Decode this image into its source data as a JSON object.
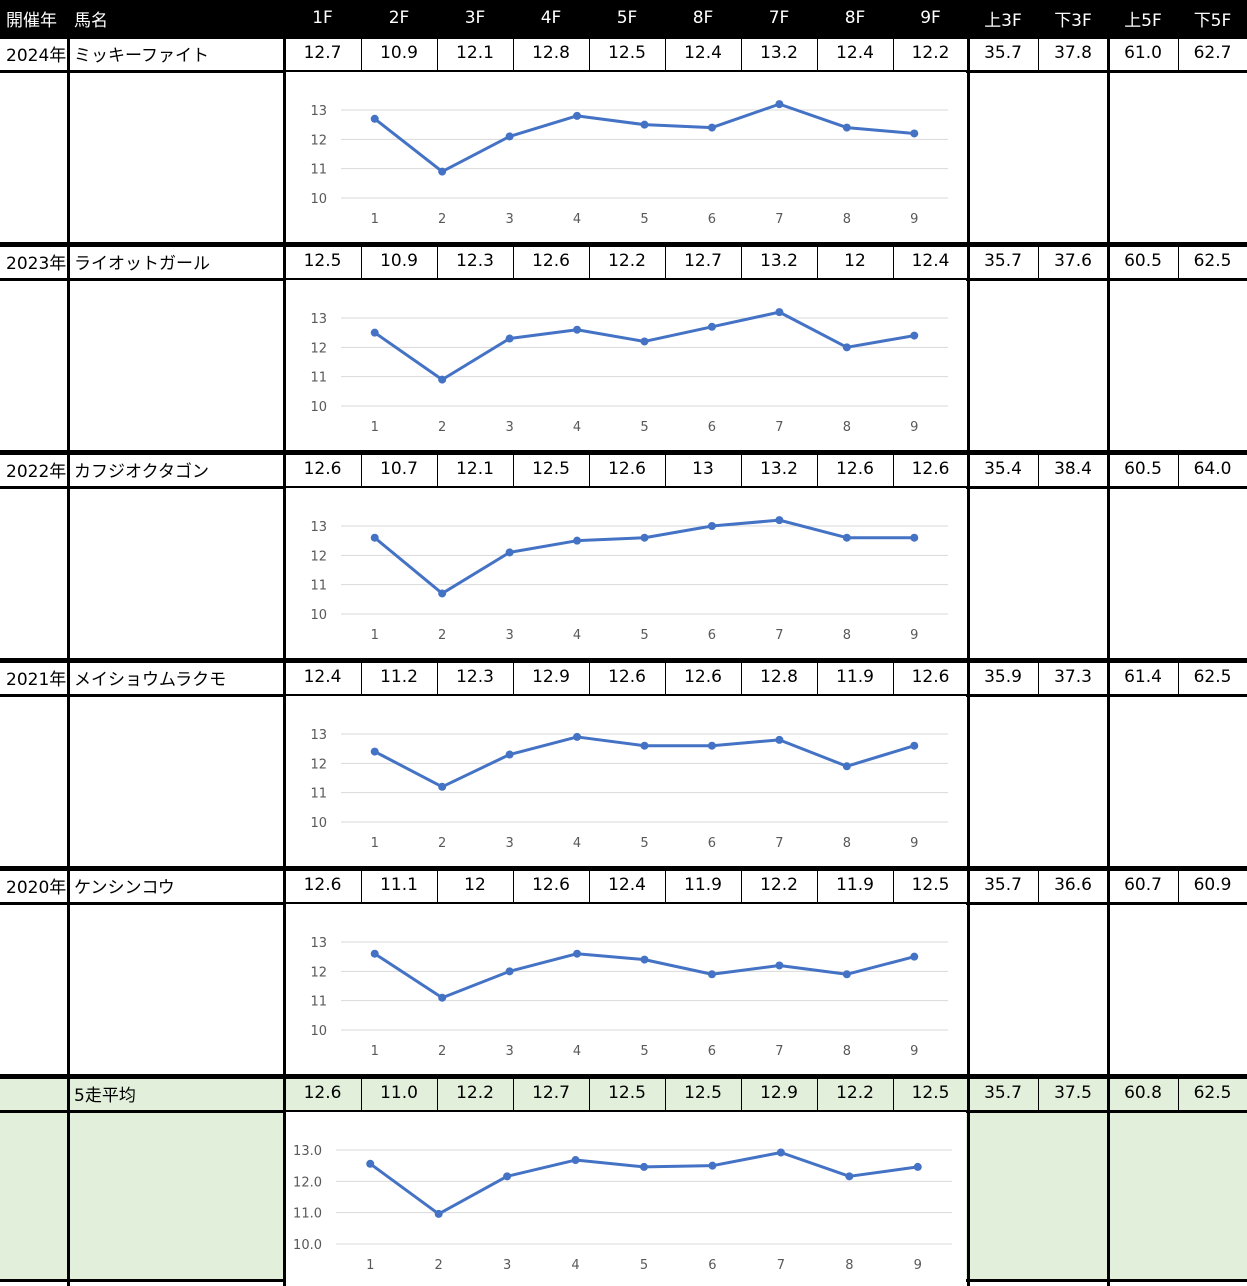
{
  "header": [
    "開催年",
    "馬名",
    "1F",
    "2F",
    "3F",
    "4F",
    "5F",
    "8F",
    "7F",
    "8F",
    "9F",
    "上3F",
    "下3F",
    "上5F",
    "下5F"
  ],
  "rows": [
    {
      "year": "2024年",
      "horse": "ミッキーファイト",
      "laps": [
        "12.7",
        "10.9",
        "12.1",
        "12.8",
        "12.5",
        "12.4",
        "13.2",
        "12.4",
        "12.2"
      ],
      "summary": [
        "35.7",
        "37.8",
        "61.0",
        "62.7"
      ]
    },
    {
      "year": "2023年",
      "horse": "ライオットガール",
      "laps": [
        "12.5",
        "10.9",
        "12.3",
        "12.6",
        "12.2",
        "12.7",
        "13.2",
        "12",
        "12.4"
      ],
      "summary": [
        "35.7",
        "37.6",
        "60.5",
        "62.5"
      ]
    },
    {
      "year": "2022年",
      "horse": "カフジオクタゴン",
      "laps": [
        "12.6",
        "10.7",
        "12.1",
        "12.5",
        "12.6",
        "13",
        "13.2",
        "12.6",
        "12.6"
      ],
      "summary": [
        "35.4",
        "38.4",
        "60.5",
        "64.0"
      ]
    },
    {
      "year": "2021年",
      "horse": "メイショウムラクモ",
      "laps": [
        "12.4",
        "11.2",
        "12.3",
        "12.9",
        "12.6",
        "12.6",
        "12.8",
        "11.9",
        "12.6"
      ],
      "summary": [
        "35.9",
        "37.3",
        "61.4",
        "62.5"
      ]
    },
    {
      "year": "2020年",
      "horse": "ケンシンコウ",
      "laps": [
        "12.6",
        "11.1",
        "12",
        "12.6",
        "12.4",
        "11.9",
        "12.2",
        "11.9",
        "12.5"
      ],
      "summary": [
        "35.7",
        "36.6",
        "60.7",
        "60.9"
      ]
    }
  ],
  "average": {
    "year": "",
    "horse": "5走平均",
    "laps": [
      "12.6",
      "11.0",
      "12.2",
      "12.7",
      "12.5",
      "12.5",
      "12.9",
      "12.2",
      "12.5"
    ],
    "summary": [
      "35.7",
      "37.5",
      "60.8",
      "62.5"
    ]
  },
  "colors": {
    "line": "#4472C4",
    "grid": "#d9d9d9",
    "avg_bg": "#e2efda",
    "header_bg": "#000000"
  },
  "chart_data": [
    {
      "type": "line",
      "x": [
        1,
        2,
        3,
        4,
        5,
        6,
        7,
        8,
        9
      ],
      "values": [
        12.7,
        10.9,
        12.1,
        12.8,
        12.5,
        12.4,
        13.2,
        12.4,
        12.2
      ],
      "ylim": [
        10,
        13
      ],
      "yticks": [
        "10",
        "11",
        "12",
        "13"
      ],
      "grid": true
    },
    {
      "type": "line",
      "x": [
        1,
        2,
        3,
        4,
        5,
        6,
        7,
        8,
        9
      ],
      "values": [
        12.5,
        10.9,
        12.3,
        12.6,
        12.2,
        12.7,
        13.2,
        12,
        12.4
      ],
      "ylim": [
        10,
        13
      ],
      "yticks": [
        "10",
        "11",
        "12",
        "13"
      ],
      "grid": true
    },
    {
      "type": "line",
      "x": [
        1,
        2,
        3,
        4,
        5,
        6,
        7,
        8,
        9
      ],
      "values": [
        12.6,
        10.7,
        12.1,
        12.5,
        12.6,
        13,
        13.2,
        12.6,
        12.6
      ],
      "ylim": [
        10,
        13
      ],
      "yticks": [
        "10",
        "11",
        "12",
        "13"
      ],
      "grid": true
    },
    {
      "type": "line",
      "x": [
        1,
        2,
        3,
        4,
        5,
        6,
        7,
        8,
        9
      ],
      "values": [
        12.4,
        11.2,
        12.3,
        12.9,
        12.6,
        12.6,
        12.8,
        11.9,
        12.6
      ],
      "ylim": [
        10,
        13
      ],
      "yticks": [
        "10",
        "11",
        "12",
        "13"
      ],
      "grid": true
    },
    {
      "type": "line",
      "x": [
        1,
        2,
        3,
        4,
        5,
        6,
        7,
        8,
        9
      ],
      "values": [
        12.6,
        11.1,
        12,
        12.6,
        12.4,
        11.9,
        12.2,
        11.9,
        12.5
      ],
      "ylim": [
        10,
        13
      ],
      "yticks": [
        "10",
        "11",
        "12",
        "13"
      ],
      "grid": true
    },
    {
      "type": "line",
      "x": [
        1,
        2,
        3,
        4,
        5,
        6,
        7,
        8,
        9
      ],
      "values": [
        12.56,
        10.96,
        12.16,
        12.68,
        12.46,
        12.5,
        12.92,
        12.16,
        12.46
      ],
      "ylim": [
        10,
        13
      ],
      "yticks": [
        "10.0",
        "11.0",
        "12.0",
        "13.0"
      ],
      "grid": true
    }
  ]
}
